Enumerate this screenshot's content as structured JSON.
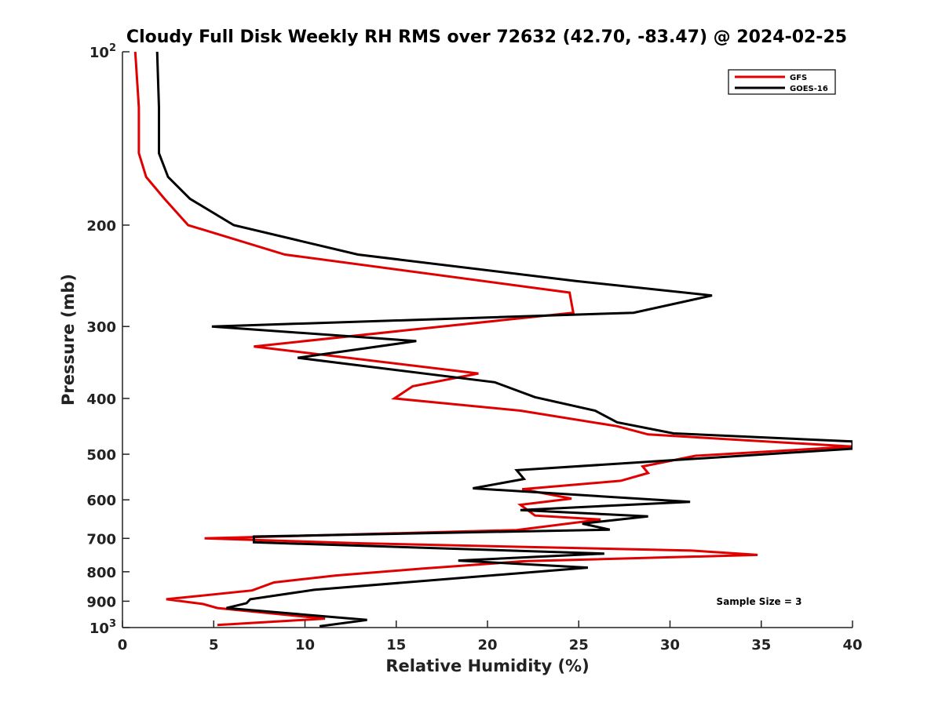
{
  "chart_data": {
    "type": "line",
    "title": "Cloudy Full Disk Weekly RH RMS over 72632 (42.70, -83.47) @ 2024-02-25",
    "xlabel": "Relative Humidity (%)",
    "ylabel": "Pressure (mb)",
    "xlim": [
      0,
      40
    ],
    "ylim": [
      100,
      1000
    ],
    "y_scale": "log",
    "y_reversed": true,
    "grid": false,
    "legend_position": "top-right",
    "x_ticks": [
      "0",
      "5",
      "10",
      "15",
      "20",
      "25",
      "30",
      "35",
      "40"
    ],
    "y_ticks": [
      {
        "value": 100,
        "label": "10",
        "sup": "2"
      },
      {
        "value": 200,
        "label": "200",
        "sup": ""
      },
      {
        "value": 300,
        "label": "300",
        "sup": ""
      },
      {
        "value": 400,
        "label": "400",
        "sup": ""
      },
      {
        "value": 500,
        "label": "500",
        "sup": ""
      },
      {
        "value": 600,
        "label": "600",
        "sup": ""
      },
      {
        "value": 700,
        "label": "700",
        "sup": ""
      },
      {
        "value": 800,
        "label": "800",
        "sup": ""
      },
      {
        "value": 900,
        "label": "900",
        "sup": ""
      },
      {
        "value": 1000,
        "label": "10",
        "sup": "3"
      }
    ],
    "series": [
      {
        "name": "GFS",
        "color": "#e00000",
        "points": [
          [
            0.7,
            100
          ],
          [
            0.9,
            125
          ],
          [
            0.9,
            150
          ],
          [
            1.3,
            165
          ],
          [
            2.3,
            180
          ],
          [
            3.6,
            200
          ],
          [
            8.9,
            225
          ],
          [
            24.5,
            262
          ],
          [
            24.7,
            284
          ],
          [
            17.5,
            300
          ],
          [
            7.2,
            325
          ],
          [
            19.5,
            362
          ],
          [
            15.9,
            381
          ],
          [
            14.9,
            400
          ],
          [
            21.8,
            420
          ],
          [
            27.1,
            447
          ],
          [
            28.8,
            462
          ],
          [
            40.0,
            485
          ],
          [
            31.4,
            503
          ],
          [
            28.5,
            525
          ],
          [
            28.8,
            539
          ],
          [
            27.3,
            556
          ],
          [
            21.9,
            575
          ],
          [
            24.6,
            597
          ],
          [
            21.8,
            612
          ],
          [
            22.6,
            639
          ],
          [
            26.2,
            649
          ],
          [
            21.6,
            677
          ],
          [
            4.5,
            700
          ],
          [
            13.1,
            714
          ],
          [
            31.2,
            735
          ],
          [
            34.8,
            748
          ],
          [
            22.0,
            767
          ],
          [
            16.4,
            790
          ],
          [
            11.7,
            812
          ],
          [
            8.3,
            835
          ],
          [
            7.1,
            862
          ],
          [
            2.4,
            893
          ],
          [
            4.4,
            910
          ],
          [
            5.2,
            925
          ],
          [
            11.1,
            965
          ],
          [
            5.2,
            990
          ]
        ]
      },
      {
        "name": "GOES-16",
        "color": "#000000",
        "points": [
          [
            1.9,
            100
          ],
          [
            2.0,
            125
          ],
          [
            2.0,
            150
          ],
          [
            2.5,
            165
          ],
          [
            3.7,
            180
          ],
          [
            6.1,
            200
          ],
          [
            12.9,
            225
          ],
          [
            24.8,
            250
          ],
          [
            32.3,
            265
          ],
          [
            28.0,
            284
          ],
          [
            4.9,
            300
          ],
          [
            16.1,
            318
          ],
          [
            9.6,
            340
          ],
          [
            20.4,
            375
          ],
          [
            22.6,
            398
          ],
          [
            25.9,
            420
          ],
          [
            27.1,
            440
          ],
          [
            30.2,
            460
          ],
          [
            40.0,
            475
          ],
          [
            40.0,
            489
          ],
          [
            21.6,
            533
          ],
          [
            22.0,
            552
          ],
          [
            19.2,
            573
          ],
          [
            31.1,
            605
          ],
          [
            21.8,
            625
          ],
          [
            28.8,
            641
          ],
          [
            25.2,
            660
          ],
          [
            26.7,
            676
          ],
          [
            7.2,
            695
          ],
          [
            7.2,
            711
          ],
          [
            26.4,
            744
          ],
          [
            18.4,
            765
          ],
          [
            25.5,
            787
          ],
          [
            10.5,
            860
          ],
          [
            7.0,
            893
          ],
          [
            6.8,
            907
          ],
          [
            5.7,
            925
          ],
          [
            13.4,
            970
          ],
          [
            10.8,
            995
          ]
        ]
      }
    ],
    "annotation": "Sample Size = 3"
  }
}
